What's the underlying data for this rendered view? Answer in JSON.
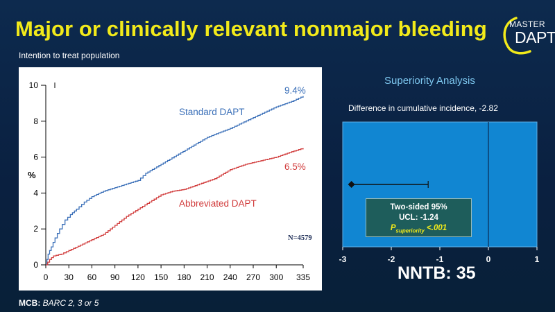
{
  "title": "Major or clinically relevant nonmajor bleeding",
  "subtitle": "Intention to treat population",
  "logo": {
    "line1": "MASTER",
    "line2": "DAPT"
  },
  "footnote": {
    "label": "MCB:",
    "text": "BARC 2, 3  or 5"
  },
  "superiority": {
    "heading": "Superiority Analysis",
    "difference_text": "Difference in cumulative incidence, -2.82",
    "ci_line1": "Two-sided 95%",
    "ci_line2": "UCL: -1.24",
    "p_prefix": "P",
    "p_sub": "superiority",
    "p_value": " <.001",
    "nntb": "NNTB: 35"
  },
  "chart_data": [
    {
      "type": "line",
      "title": "Major or clinically relevant nonmajor bleeding",
      "xlabel": "",
      "ylabel": "%",
      "xlim": [
        0,
        335
      ],
      "ylim": [
        0,
        10
      ],
      "xticks": [
        0,
        30,
        60,
        90,
        120,
        150,
        180,
        210,
        240,
        270,
        300,
        335
      ],
      "yticks": [
        0,
        2,
        4,
        6,
        8,
        10
      ],
      "annotation": "N=4579",
      "series": [
        {
          "name": "Standard DAPT",
          "end_label": "9.4%",
          "color": "#3a6fb8",
          "x": [
            0,
            3,
            7,
            12,
            18,
            25,
            32,
            40,
            50,
            60,
            75,
            90,
            105,
            120,
            130,
            150,
            170,
            190,
            210,
            240,
            270,
            300,
            320,
            335
          ],
          "y": [
            0,
            0.6,
            1.0,
            1.5,
            2.0,
            2.5,
            2.8,
            3.1,
            3.5,
            3.8,
            4.1,
            4.3,
            4.5,
            4.7,
            5.1,
            5.6,
            6.1,
            6.6,
            7.1,
            7.6,
            8.2,
            8.8,
            9.1,
            9.4
          ]
        },
        {
          "name": "Abbreviated DAPT",
          "end_label": "6.5%",
          "color": "#d13b3b",
          "x": [
            0,
            5,
            10,
            20,
            30,
            45,
            60,
            75,
            90,
            105,
            120,
            135,
            150,
            165,
            180,
            200,
            220,
            240,
            260,
            280,
            300,
            320,
            335
          ],
          "y": [
            0,
            0.3,
            0.5,
            0.6,
            0.8,
            1.1,
            1.4,
            1.7,
            2.2,
            2.7,
            3.1,
            3.5,
            3.9,
            4.1,
            4.2,
            4.5,
            4.8,
            5.3,
            5.6,
            5.8,
            6.0,
            6.3,
            6.5
          ]
        }
      ]
    },
    {
      "type": "forest",
      "title": "Superiority Analysis",
      "xlim": [
        -3,
        1
      ],
      "xticks": [
        -3,
        -2,
        -1,
        0,
        1
      ],
      "reference_line": 0,
      "point_estimate": -2.82,
      "ci_upper": -1.24
    }
  ]
}
